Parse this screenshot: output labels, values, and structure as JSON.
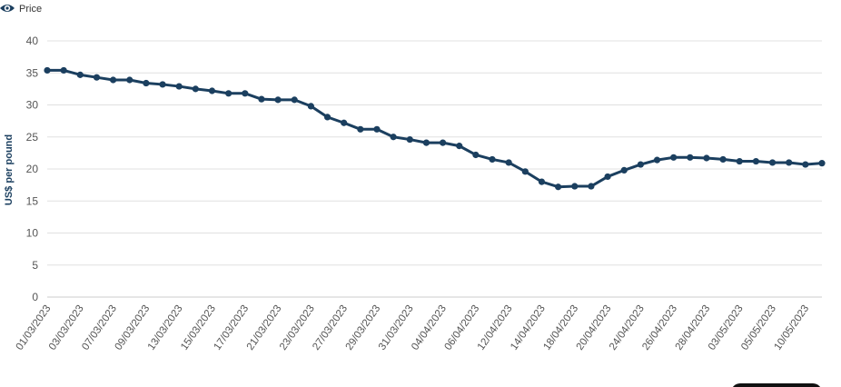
{
  "chart_data": {
    "type": "line",
    "y_label": "US$ per pound",
    "categories": [
      "01/03/2023",
      null,
      "03/03/2023",
      null,
      "07/03/2023",
      null,
      "09/03/2023",
      null,
      "13/03/2023",
      null,
      "15/03/2023",
      null,
      "17/03/2023",
      null,
      "21/03/2023",
      null,
      "23/03/2023",
      null,
      "27/03/2023",
      null,
      "29/03/2023",
      null,
      "31/03/2023",
      null,
      "04/04/2023",
      null,
      "06/04/2023",
      null,
      "12/04/2023",
      null,
      "14/04/2023",
      null,
      "18/04/2023",
      null,
      "20/04/2023",
      null,
      "24/04/2023",
      null,
      "26/04/2023",
      null,
      "28/04/2023",
      null,
      "03/05/2023",
      null,
      "05/05/2023",
      null,
      "10/05/2023",
      null
    ],
    "series": [
      {
        "name": "Price",
        "color": "#1b3f5f",
        "values": [
          35.4,
          35.4,
          34.7,
          34.3,
          33.9,
          33.9,
          33.4,
          33.2,
          32.9,
          32.5,
          32.2,
          31.8,
          31.8,
          30.9,
          30.8,
          30.8,
          29.8,
          28.1,
          27.2,
          26.2,
          26.2,
          25.0,
          24.6,
          24.1,
          24.1,
          23.6,
          22.2,
          21.5,
          21.0,
          19.6,
          18.0,
          17.2,
          17.3,
          17.3,
          18.8,
          19.8,
          20.7,
          21.4,
          21.8,
          21.8,
          21.7,
          21.5,
          21.2,
          21.2,
          21.0,
          21.0,
          20.7,
          20.9
        ]
      }
    ],
    "ylim": [
      0,
      40
    ],
    "yticks": [
      0,
      5,
      10,
      15,
      20,
      25,
      30,
      35,
      40
    ],
    "grid": true
  }
}
